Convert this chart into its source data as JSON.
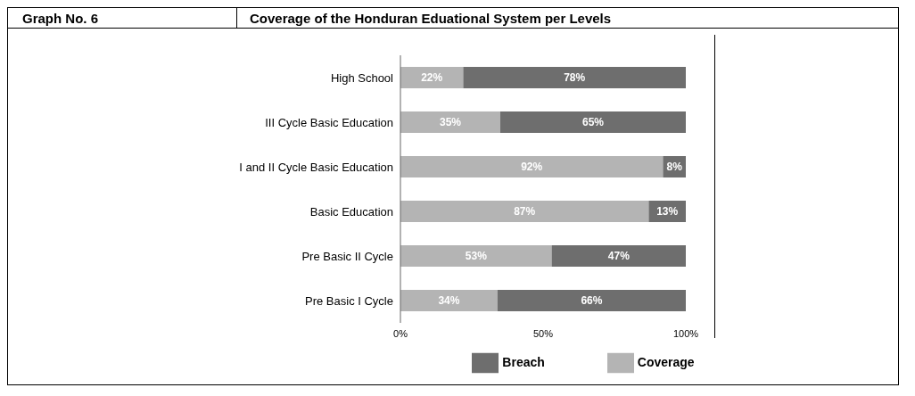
{
  "chart_data": {
    "type": "bar",
    "title": "Coverage of the Honduran Eduational System per Levels",
    "subtitle": "Graph No. 6",
    "orientation": "horizontal",
    "stacked": true,
    "categories": [
      "High School",
      "III Cycle Basic Education",
      "I and II Cycle Basic Education",
      "Basic Education",
      "Pre Basic II Cycle",
      "Pre Basic I Cycle"
    ],
    "series": [
      {
        "name": "Coverage",
        "color": "#b4b4b4",
        "values": [
          22,
          35,
          92,
          87,
          53,
          34
        ],
        "value_labels": [
          "22%",
          "35%",
          "92%",
          "87%",
          "53%",
          "34%"
        ]
      },
      {
        "name": "Breach",
        "color": "#6e6e6e",
        "values": [
          78,
          65,
          8,
          13,
          47,
          66
        ],
        "value_labels": [
          "78%",
          "65%",
          "8%",
          "13%",
          "47%",
          "66%"
        ]
      }
    ],
    "xlim": [
      0,
      100
    ],
    "xticks": [
      {
        "value": 0,
        "label": "0%"
      },
      {
        "value": 50,
        "label": "50%"
      },
      {
        "value": 100,
        "label": "100%"
      }
    ],
    "grid": false,
    "legend": "bottom"
  }
}
